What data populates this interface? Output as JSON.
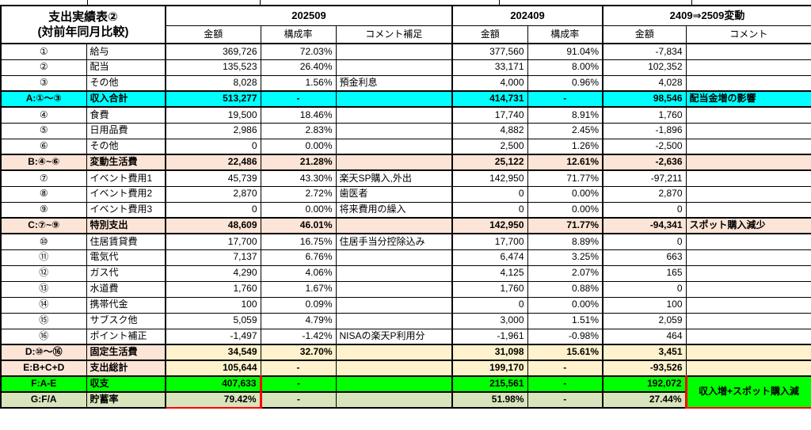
{
  "title": {
    "line1": "支出実績表②",
    "line2": "(対前年同月比較)"
  },
  "columns": {
    "group_2509": "202509",
    "group_2409": "202409",
    "group_change": "2409⇒2509変動",
    "amount": "金額",
    "ratio": "構成率",
    "comment_supplement": "コメント補足",
    "comment": "コメント"
  },
  "fg_comment": "収入増+スポット購入減",
  "colors": {
    "income_total_row": "#00FFFF",
    "subtotal_row": "#FCE4D6",
    "fixed_total_values": "#FFF2CC",
    "balance_row": "#00FF00",
    "savings_rate_row": "#D8E4BC",
    "highlight_box": "#FF0000"
  },
  "rows": [
    {
      "id": "①",
      "item": "給与",
      "a1": "369,726",
      "r1": "72.03%",
      "c1": "",
      "a2": "377,560",
      "r2": "91.04%",
      "a3": "-7,834",
      "c3": "",
      "style": "plain"
    },
    {
      "id": "②",
      "item": "配当",
      "a1": "135,523",
      "r1": "26.40%",
      "c1": "",
      "a2": "33,171",
      "r2": "8.00%",
      "a3": "102,352",
      "c3": "",
      "style": "plain"
    },
    {
      "id": "③",
      "item": "その他",
      "a1": "8,028",
      "r1": "1.56%",
      "c1": "預金利息",
      "a2": "4,000",
      "r2": "0.96%",
      "a3": "4,028",
      "c3": "",
      "style": "plain"
    },
    {
      "id": "A:①〜③",
      "item": "収入合計",
      "a1": "513,277",
      "r1": "-",
      "c1": "",
      "a2": "414,731",
      "r2": "-",
      "a3": "98,546",
      "c3": "配当金増の影響",
      "style": "cyan"
    },
    {
      "id": "④",
      "item": "食費",
      "a1": "19,500",
      "r1": "18.46%",
      "c1": "",
      "a2": "17,740",
      "r2": "8.91%",
      "a3": "1,760",
      "c3": "",
      "style": "plain"
    },
    {
      "id": "⑤",
      "item": "日用品費",
      "a1": "2,986",
      "r1": "2.83%",
      "c1": "",
      "a2": "4,882",
      "r2": "2.45%",
      "a3": "-1,896",
      "c3": "",
      "style": "plain"
    },
    {
      "id": "⑥",
      "item": "その他",
      "a1": "0",
      "r1": "0.00%",
      "c1": "",
      "a2": "2,500",
      "r2": "1.26%",
      "a3": "-2,500",
      "c3": "",
      "style": "plain"
    },
    {
      "id": "B:④~⑥",
      "item": "変動生活費",
      "a1": "22,486",
      "r1": "21.28%",
      "c1": "",
      "a2": "25,122",
      "r2": "12.61%",
      "a3": "-2,636",
      "c3": "",
      "style": "peach"
    },
    {
      "id": "⑦",
      "item": "イベント費用1",
      "a1": "45,739",
      "r1": "43.30%",
      "c1": "楽天SP購入,外出",
      "a2": "142,950",
      "r2": "71.77%",
      "a3": "-97,211",
      "c3": "",
      "style": "plain"
    },
    {
      "id": "⑧",
      "item": "イベント費用2",
      "a1": "2,870",
      "r1": "2.72%",
      "c1": "歯医者",
      "a2": "0",
      "r2": "0.00%",
      "a3": "2,870",
      "c3": "",
      "style": "plain"
    },
    {
      "id": "⑨",
      "item": "イベント費用3",
      "a1": "0",
      "r1": "0.00%",
      "c1": "将来費用の繰入",
      "a2": "0",
      "r2": "0.00%",
      "a3": "0",
      "c3": "",
      "style": "plain"
    },
    {
      "id": "C:⑦~⑨",
      "item": "特別支出",
      "a1": "48,609",
      "r1": "46.01%",
      "c1": "",
      "a2": "142,950",
      "r2": "71.77%",
      "a3": "-94,341",
      "c3": "スポット購入減少",
      "style": "peach"
    },
    {
      "id": "⑩",
      "item": "住居賃貸費",
      "a1": "17,700",
      "r1": "16.75%",
      "c1": "住居手当分控除込み",
      "a2": "17,700",
      "r2": "8.89%",
      "a3": "0",
      "c3": "",
      "style": "plain"
    },
    {
      "id": "⑪",
      "item": "電気代",
      "a1": "7,137",
      "r1": "6.76%",
      "c1": "",
      "a2": "6,474",
      "r2": "3.25%",
      "a3": "663",
      "c3": "",
      "style": "plain"
    },
    {
      "id": "⑫",
      "item": "ガス代",
      "a1": "4,290",
      "r1": "4.06%",
      "c1": "",
      "a2": "4,125",
      "r2": "2.07%",
      "a3": "165",
      "c3": "",
      "style": "plain"
    },
    {
      "id": "⑬",
      "item": "水道費",
      "a1": "1,760",
      "r1": "1.67%",
      "c1": "",
      "a2": "1,760",
      "r2": "0.88%",
      "a3": "0",
      "c3": "",
      "style": "plain"
    },
    {
      "id": "⑭",
      "item": "携帯代金",
      "a1": "100",
      "r1": "0.09%",
      "c1": "",
      "a2": "0",
      "r2": "0.00%",
      "a3": "100",
      "c3": "",
      "style": "plain"
    },
    {
      "id": "⑮",
      "item": "サブスク他",
      "a1": "5,059",
      "r1": "4.79%",
      "c1": "",
      "a2": "3,000",
      "r2": "1.51%",
      "a3": "2,059",
      "c3": "",
      "style": "plain"
    },
    {
      "id": "⑯",
      "item": "ポイント補正",
      "a1": "-1,497",
      "r1": "-1.42%",
      "c1": "NISAの楽天P利用分",
      "a2": "-1,961",
      "r2": "-0.98%",
      "a3": "464",
      "c3": "",
      "style": "plain"
    },
    {
      "id": "D:⑩〜⑯",
      "item": "固定生活費",
      "a1": "34,549",
      "r1": "32.70%",
      "c1": "",
      "a2": "31,098",
      "r2": "15.61%",
      "a3": "3,451",
      "c3": "",
      "style": "dual"
    },
    {
      "id": "E:B+C+D",
      "item": "支出総計",
      "a1": "105,644",
      "r1": "-",
      "c1": "",
      "a2": "199,170",
      "r2": "-",
      "a3": "-93,526",
      "c3": "",
      "style": "dual"
    },
    {
      "id": "F:A-E",
      "item": "収支",
      "a1": "407,633",
      "r1": "-",
      "c1": "",
      "a2": "215,561",
      "r2": "-",
      "a3": "192,072",
      "style": "green",
      "red_a1": "top",
      "fg": "start"
    },
    {
      "id": "G:F/A",
      "item": "貯蓄率",
      "a1": "79.42%",
      "r1": "-",
      "c1": "",
      "a2": "51.98%",
      "r2": "-",
      "a3": "27.44%",
      "style": "lgreen",
      "red_a1": "bottom",
      "fg": "skip"
    }
  ]
}
